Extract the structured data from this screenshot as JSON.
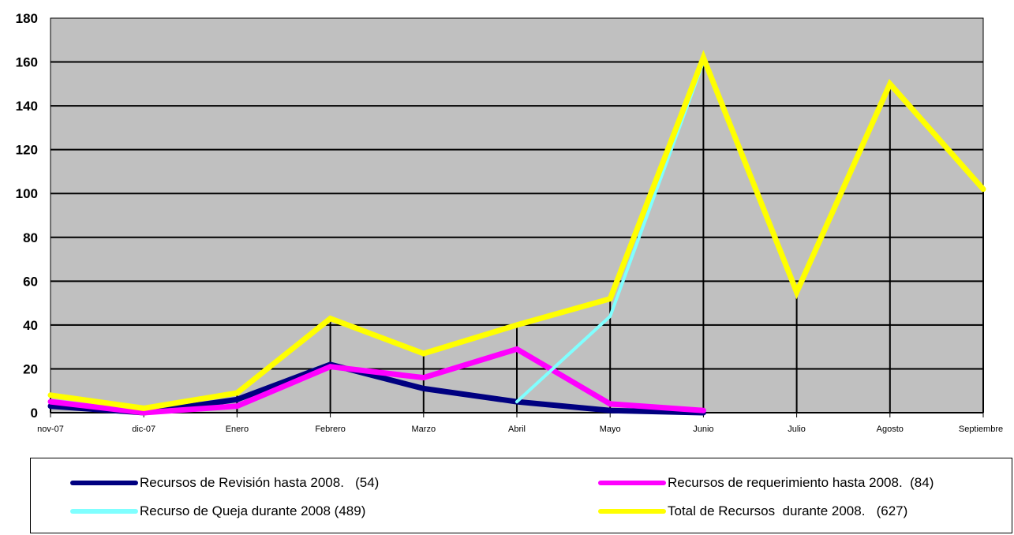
{
  "chart_data": {
    "type": "line",
    "title": "",
    "xlabel": "",
    "ylabel": "",
    "ylim": [
      0,
      180
    ],
    "yticks": [
      0,
      20,
      40,
      60,
      80,
      100,
      120,
      140,
      160,
      180
    ],
    "grid": true,
    "plot_background": "#c0c0c0",
    "legend_position": "bottom",
    "categories": [
      "nov-07",
      "dic-07",
      "Enero",
      "Febrero",
      "Marzo",
      "Abril",
      "Mayo",
      "Junio",
      "Julio",
      "Agosto",
      "Septiembre"
    ],
    "series": [
      {
        "name": "Recursos de Revisión hasta 2008.   (54)",
        "color": "#000080",
        "values": [
          3,
          0,
          6,
          22,
          11,
          5,
          1,
          0,
          null,
          null,
          null
        ]
      },
      {
        "name": "Recursos de requerimiento hasta 2008.  (84)",
        "color": "#ff00ff",
        "values": [
          5,
          0,
          3,
          21,
          16,
          29,
          4,
          1,
          null,
          null,
          null
        ]
      },
      {
        "name": "Recurso de Queja durante 2008 (489)",
        "color": "#80ffff",
        "values": [
          null,
          null,
          null,
          null,
          null,
          5,
          44,
          160,
          null,
          null,
          null
        ]
      },
      {
        "name": "Total de Recursos  durante 2008.   (627)",
        "color": "#ffff00",
        "values": [
          8,
          2,
          9,
          43,
          27,
          40,
          52,
          162,
          55,
          150,
          102
        ]
      }
    ]
  }
}
